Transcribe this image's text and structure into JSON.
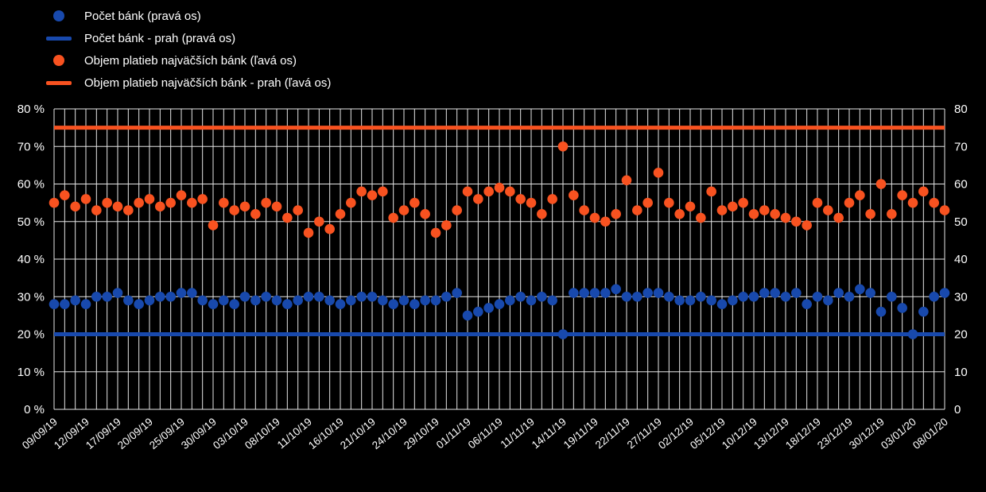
{
  "colors": {
    "blue": "#1849ad",
    "orange": "#f85220",
    "grid": "#ffffff",
    "text": "#ffffff",
    "background": "#000000"
  },
  "legend": {
    "items": [
      {
        "label": "Počet bánk (pravá os)",
        "marker": "dot",
        "color": "blue"
      },
      {
        "label": "Počet bánk - prah (pravá os)",
        "marker": "line",
        "color": "blue"
      },
      {
        "label": "Objem platieb najväčších bánk (ľavá os)",
        "marker": "dot",
        "color": "orange"
      },
      {
        "label": "Objem platieb najväčších bánk - prah (ľavá os)",
        "marker": "line",
        "color": "orange"
      }
    ]
  },
  "chart_data": {
    "type": "scatter",
    "title": "",
    "grid": true,
    "legend_position": "top-left",
    "x_tick_every": 3,
    "x_dates": [
      "09/09/19",
      "10/09/19",
      "11/09/19",
      "12/09/19",
      "13/09/19",
      "16/09/19",
      "17/09/19",
      "18/09/19",
      "19/09/19",
      "20/09/19",
      "23/09/19",
      "24/09/19",
      "25/09/19",
      "26/09/19",
      "27/09/19",
      "30/09/19",
      "01/10/19",
      "02/10/19",
      "03/10/19",
      "04/10/19",
      "07/10/19",
      "08/10/19",
      "09/10/19",
      "10/10/19",
      "11/10/19",
      "14/10/19",
      "15/10/19",
      "16/10/19",
      "17/10/19",
      "18/10/19",
      "21/10/19",
      "22/10/19",
      "23/10/19",
      "24/10/19",
      "25/10/19",
      "28/10/19",
      "29/10/19",
      "30/10/19",
      "31/10/19",
      "01/11/19",
      "04/11/19",
      "05/11/19",
      "06/11/19",
      "07/11/19",
      "08/11/19",
      "11/11/19",
      "12/11/19",
      "13/11/19",
      "14/11/19",
      "15/11/19",
      "18/11/19",
      "19/11/19",
      "20/11/19",
      "21/11/19",
      "22/11/19",
      "25/11/19",
      "26/11/19",
      "27/11/19",
      "28/11/19",
      "29/11/19",
      "02/12/19",
      "03/12/19",
      "04/12/19",
      "05/12/19",
      "06/12/19",
      "09/12/19",
      "10/12/19",
      "11/12/19",
      "12/12/19",
      "13/12/19",
      "16/12/19",
      "17/12/19",
      "18/12/19",
      "19/12/19",
      "20/12/19",
      "23/12/19",
      "24/12/19",
      "27/12/19",
      "30/12/19",
      "31/12/19",
      "02/01/20",
      "03/01/20",
      "06/01/20",
      "07/01/20",
      "08/01/20"
    ],
    "series": [
      {
        "name": "Objem platieb najväčších bánk (ľavá os)",
        "axis": "left",
        "color": "orange",
        "marker": "dot",
        "values": [
          55,
          57,
          54,
          56,
          53,
          55,
          54,
          53,
          55,
          56,
          54,
          55,
          57,
          55,
          56,
          49,
          55,
          53,
          54,
          52,
          55,
          54,
          51,
          53,
          47,
          50,
          48,
          52,
          55,
          58,
          57,
          58,
          51,
          53,
          55,
          52,
          47,
          49,
          53,
          58,
          56,
          58,
          59,
          58,
          56,
          55,
          52,
          56,
          70,
          57,
          53,
          51,
          50,
          52,
          61,
          53,
          55,
          63,
          55,
          52,
          54,
          51,
          58,
          53,
          54,
          55,
          52,
          53,
          52,
          51,
          50,
          49,
          55,
          53,
          51,
          55,
          57,
          52,
          60,
          52,
          57,
          55,
          58,
          55,
          53
        ]
      },
      {
        "name": "Počet bánk (pravá os)",
        "axis": "right",
        "color": "blue",
        "marker": "dot",
        "values": [
          28,
          28,
          29,
          28,
          30,
          30,
          31,
          29,
          28,
          29,
          30,
          30,
          31,
          31,
          29,
          28,
          29,
          28,
          30,
          29,
          30,
          29,
          28,
          29,
          30,
          30,
          29,
          28,
          29,
          30,
          30,
          29,
          28,
          29,
          28,
          29,
          29,
          30,
          31,
          25,
          26,
          27,
          28,
          29,
          30,
          29,
          30,
          29,
          20,
          31,
          31,
          31,
          31,
          32,
          30,
          30,
          31,
          31,
          30,
          29,
          29,
          30,
          29,
          28,
          29,
          30,
          30,
          31,
          31,
          30,
          31,
          28,
          30,
          29,
          31,
          30,
          32,
          31,
          26,
          30,
          27,
          20,
          26,
          30,
          31
        ]
      }
    ],
    "hlines": [
      {
        "name": "Objem platieb najväčších bánk - prah (ľavá os)",
        "color": "orange",
        "value": 75
      },
      {
        "name": "Počet bánk - prah (pravá os)",
        "color": "blue",
        "value": 20
      }
    ],
    "left_axis": {
      "min": 0,
      "max": 80,
      "step": 10,
      "ticks": [
        "0 %",
        "10 %",
        "20 %",
        "30 %",
        "40 %",
        "50 %",
        "60 %",
        "70 %",
        "80 %"
      ]
    },
    "right_axis": {
      "min": 0,
      "max": 80,
      "step": 10,
      "ticks": [
        "0",
        "10",
        "20",
        "30",
        "40",
        "50",
        "60",
        "70",
        "80"
      ]
    }
  }
}
